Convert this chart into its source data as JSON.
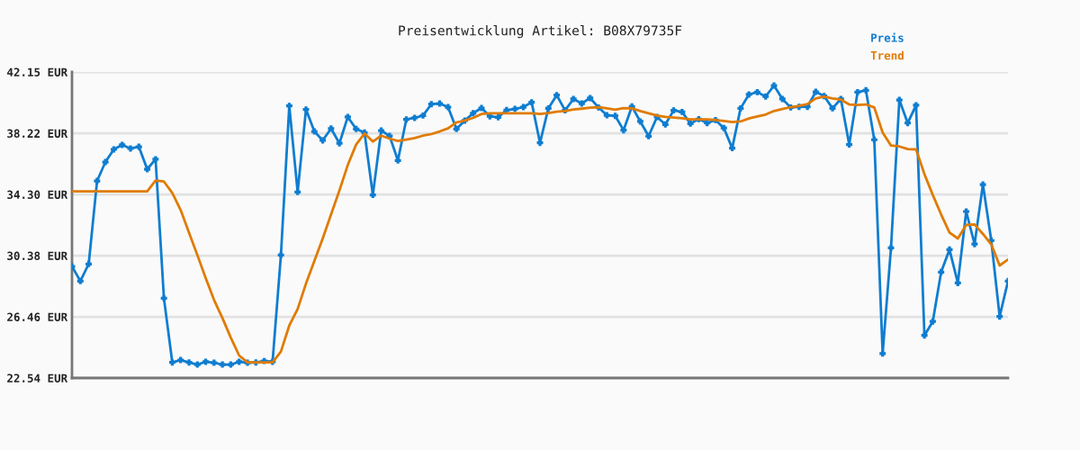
{
  "chart_data": {
    "type": "line",
    "title": "Preisentwicklung Artikel: B08X79735F",
    "categories": [
      null,
      null,
      null,
      null,
      null,
      null,
      null,
      null,
      null,
      null,
      null,
      null,
      null,
      null,
      null,
      null,
      null,
      null,
      null,
      null,
      null,
      null,
      null,
      null,
      null,
      null,
      null,
      null,
      null,
      null,
      null,
      null,
      null,
      null,
      null,
      null,
      null,
      null,
      null,
      null,
      null,
      null,
      null,
      null,
      null,
      null,
      null,
      null,
      null,
      null,
      null,
      null,
      null,
      null,
      null,
      null,
      null,
      null,
      null,
      null,
      null,
      null,
      null,
      null,
      null,
      null,
      null,
      null,
      null,
      null,
      null,
      null,
      null,
      null,
      null,
      null,
      null,
      null,
      null,
      null,
      null,
      null,
      null,
      null,
      null,
      null,
      null,
      null,
      null,
      null,
      null,
      null,
      null,
      null,
      null,
      null,
      null,
      null,
      null,
      null,
      null,
      null,
      null,
      null,
      null,
      null,
      null,
      null,
      null,
      null,
      null,
      null,
      null
    ],
    "series": [
      {
        "name": "Preis",
        "color": "#0f7dd0",
        "marker": "cross",
        "values": [
          29.69,
          28.75,
          29.85,
          35.17,
          36.38,
          37.19,
          37.48,
          37.25,
          37.36,
          35.92,
          36.56,
          27.65,
          23.54,
          23.69,
          23.54,
          23.4,
          23.58,
          23.52,
          23.4,
          23.4,
          23.58,
          23.52,
          23.54,
          23.63,
          23.58,
          30.42,
          39.98,
          34.46,
          39.75,
          38.34,
          37.77,
          38.53,
          37.58,
          39.27,
          38.5,
          38.27,
          34.27,
          38.4,
          38.05,
          36.48,
          39.11,
          39.21,
          39.36,
          40.09,
          40.13,
          39.9,
          38.5,
          39.04,
          39.51,
          39.84,
          39.31,
          39.25,
          39.71,
          39.78,
          39.9,
          40.21,
          37.61,
          39.82,
          40.67,
          39.69,
          40.42,
          40.13,
          40.48,
          39.88,
          39.38,
          39.34,
          38.42,
          39.94,
          38.98,
          38.04,
          39.27,
          38.79,
          39.69,
          39.59,
          38.84,
          39.13,
          38.88,
          39.07,
          38.56,
          37.27,
          39.82,
          40.71,
          40.86,
          40.58,
          41.28,
          40.42,
          39.88,
          39.92,
          39.92,
          40.88,
          40.61,
          39.82,
          40.42,
          37.5,
          40.86,
          40.98,
          37.81,
          24.11,
          30.88,
          40.36,
          38.88,
          40.02,
          25.27,
          26.16,
          29.33,
          30.77,
          28.63,
          33.21,
          31.12,
          34.94,
          31.35,
          26.48,
          28.75
        ]
      },
      {
        "name": "Trend",
        "color": "#e07b00",
        "marker": "none",
        "values": [
          34.5,
          34.5,
          34.5,
          34.5,
          34.5,
          34.5,
          34.5,
          34.5,
          34.5,
          34.5,
          35.19,
          35.13,
          34.4,
          33.31,
          31.86,
          30.42,
          28.94,
          27.54,
          26.38,
          25.13,
          23.98,
          23.54,
          23.54,
          23.54,
          23.54,
          24.23,
          25.9,
          26.96,
          28.59,
          30.04,
          31.48,
          33.02,
          34.56,
          36.19,
          37.5,
          38.21,
          37.69,
          38.07,
          37.88,
          37.73,
          37.82,
          37.92,
          38.07,
          38.17,
          38.34,
          38.54,
          38.92,
          39.04,
          39.21,
          39.46,
          39.5,
          39.5,
          39.5,
          39.5,
          39.5,
          39.5,
          39.46,
          39.52,
          39.61,
          39.65,
          39.75,
          39.8,
          39.86,
          39.9,
          39.82,
          39.73,
          39.84,
          39.82,
          39.65,
          39.5,
          39.36,
          39.27,
          39.23,
          39.19,
          39.11,
          39.11,
          39.11,
          39.07,
          39.02,
          38.94,
          38.98,
          39.17,
          39.3,
          39.42,
          39.65,
          39.78,
          39.9,
          39.98,
          40.09,
          40.46,
          40.57,
          40.46,
          40.38,
          40.07,
          40.04,
          40.07,
          39.88,
          38.27,
          37.44,
          37.38,
          37.21,
          37.19,
          35.61,
          34.27,
          33.02,
          31.86,
          31.48,
          32.35,
          32.38,
          31.77,
          31.1,
          29.75,
          30.13
        ]
      }
    ],
    "ylim": [
      22.54,
      42.15
    ],
    "yticks": [
      {
        "value": 22.54,
        "label": "22.54 EUR"
      },
      {
        "value": 26.46,
        "label": "26.46 EUR"
      },
      {
        "value": 30.38,
        "label": "30.38 EUR"
      },
      {
        "value": 34.3,
        "label": "34.30 EUR"
      },
      {
        "value": 38.22,
        "label": "38.22 EUR"
      },
      {
        "value": 42.15,
        "label": "42.15 EUR"
      }
    ],
    "grid": "y",
    "legend": "top right",
    "tick_labels": "y",
    "line_style": "solid"
  }
}
